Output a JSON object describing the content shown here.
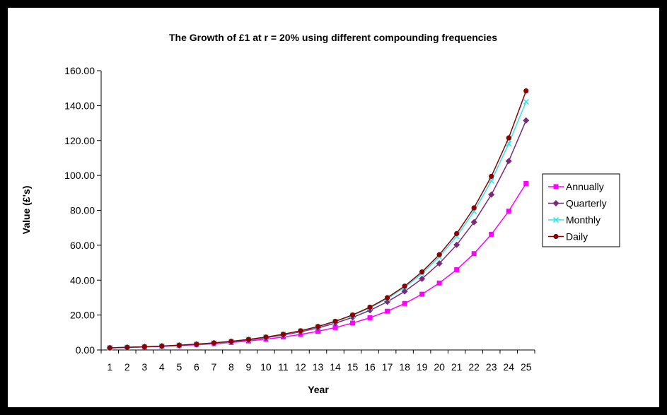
{
  "chart_data": {
    "type": "line",
    "title": "The Growth of £1 at r = 20% using different compounding frequencies",
    "xlabel": "Year",
    "ylabel": "Value (£'s)",
    "x": [
      1,
      2,
      3,
      4,
      5,
      6,
      7,
      8,
      9,
      10,
      11,
      12,
      13,
      14,
      15,
      16,
      17,
      18,
      19,
      20,
      21,
      22,
      23,
      24,
      25
    ],
    "y_ticks": [
      "0.00",
      "20.00",
      "40.00",
      "60.00",
      "80.00",
      "100.00",
      "120.00",
      "140.00",
      "160.00"
    ],
    "ylim": [
      0,
      160
    ],
    "grid": false,
    "legend_position": "right",
    "series": [
      {
        "name": "Annually",
        "color": "#ff00ff",
        "marker": "square",
        "values": [
          1.2,
          1.44,
          1.73,
          2.07,
          2.49,
          2.99,
          3.58,
          4.3,
          5.16,
          6.19,
          7.43,
          8.92,
          10.7,
          12.84,
          15.41,
          18.49,
          22.19,
          26.62,
          31.95,
          38.34,
          46.01,
          55.21,
          66.25,
          79.5,
          95.4
        ]
      },
      {
        "name": "Quarterly",
        "color": "#7a2a7a",
        "marker": "diamond",
        "values": [
          1.22,
          1.48,
          1.8,
          2.19,
          2.65,
          3.23,
          3.93,
          4.77,
          5.8,
          7.04,
          8.56,
          10.4,
          12.64,
          15.37,
          18.68,
          22.71,
          27.6,
          33.55,
          40.78,
          49.56,
          60.24,
          73.22,
          89.0,
          108.18,
          131.5
        ]
      },
      {
        "name": "Monthly",
        "color": "#33e6e6",
        "marker": "x",
        "values": [
          1.22,
          1.49,
          1.82,
          2.22,
          2.7,
          3.3,
          4.03,
          4.91,
          5.99,
          7.31,
          8.92,
          10.88,
          13.27,
          16.19,
          19.75,
          24.09,
          29.39,
          35.86,
          43.74,
          53.36,
          65.09,
          79.41,
          96.87,
          118.18,
          142.17
        ]
      },
      {
        "name": "Daily",
        "color": "#8b0000",
        "marker": "circle",
        "values": [
          1.22,
          1.49,
          1.82,
          2.23,
          2.72,
          3.32,
          4.05,
          4.95,
          6.05,
          7.39,
          9.02,
          11.02,
          13.46,
          16.44,
          20.08,
          24.53,
          29.96,
          36.59,
          44.7,
          54.59,
          66.68,
          81.45,
          99.48,
          121.51,
          148.41
        ]
      }
    ]
  }
}
